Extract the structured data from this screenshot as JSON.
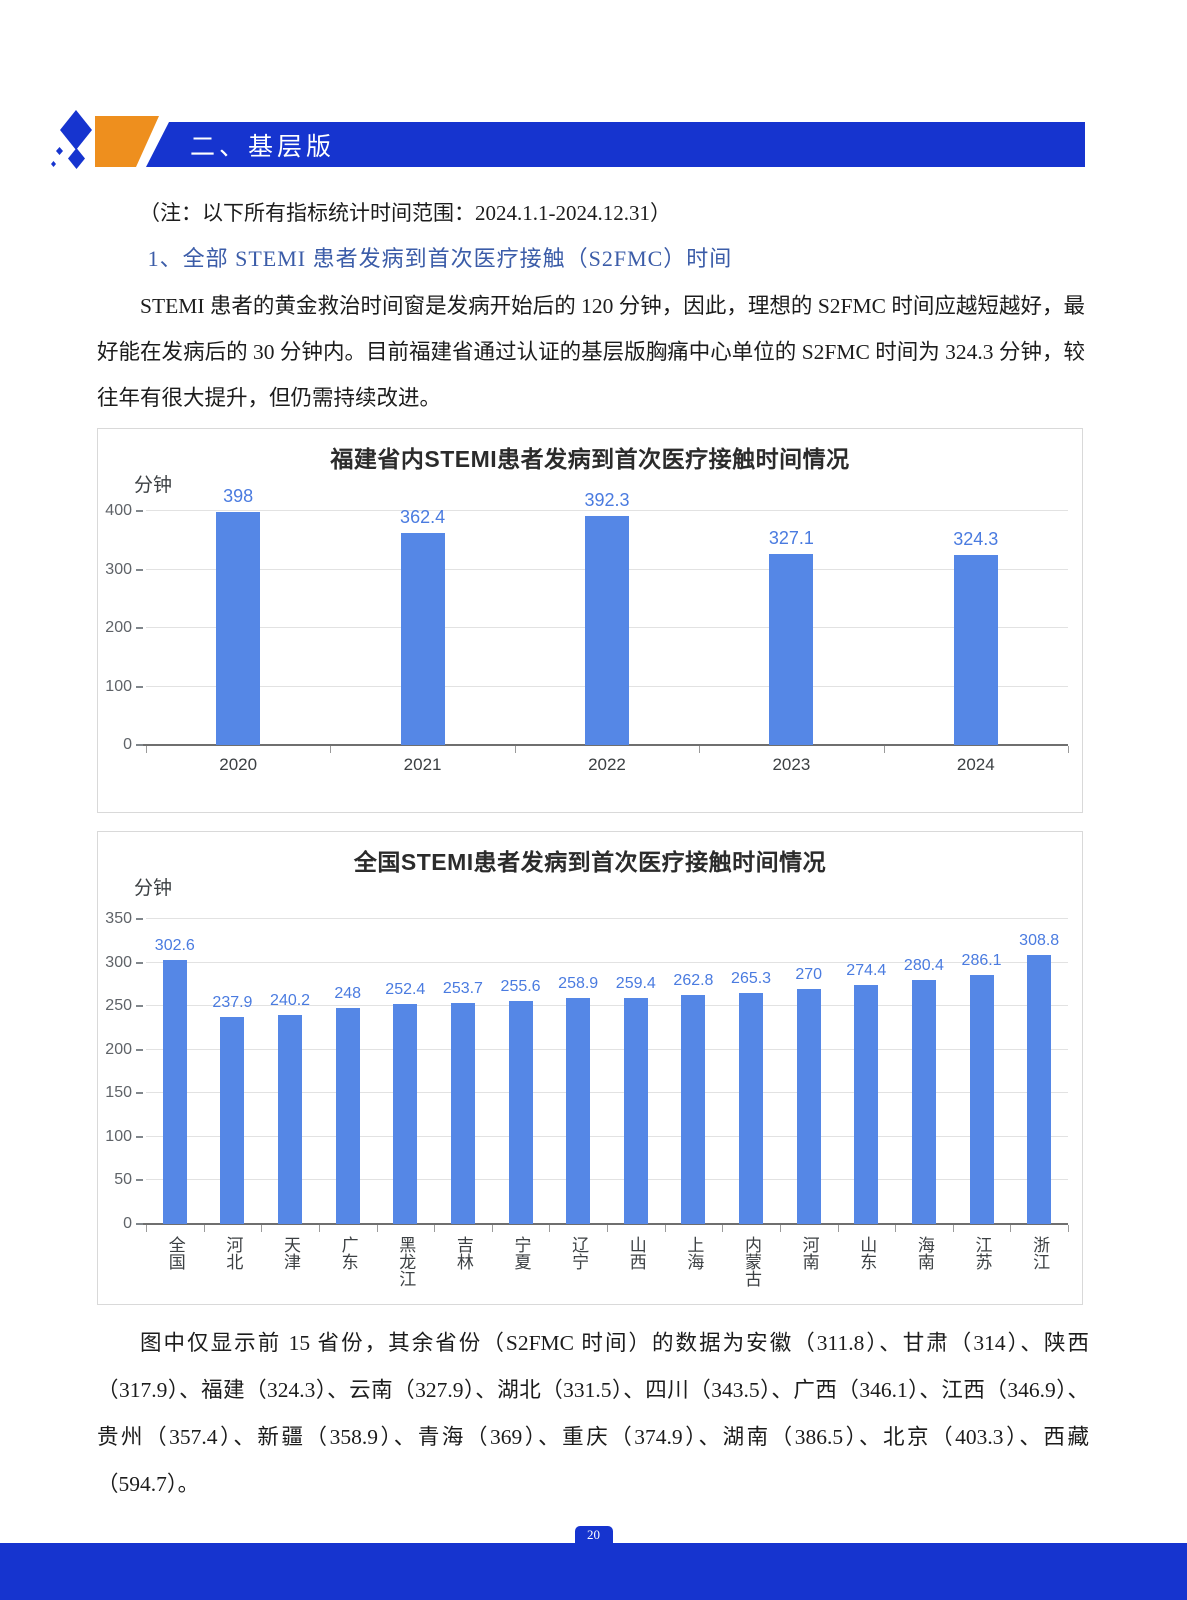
{
  "header": {
    "banner_title": "二、基层版"
  },
  "note": "（注：以下所有指标统计时间范围：2024.1.1-2024.12.31）",
  "heading": "1、全部 STEMI 患者发病到首次医疗接触（S2FMC）时间",
  "body_paragraph": "STEMI 患者的黄金救治时间窗是发病开始后的 120 分钟，因此，理想的 S2FMC 时间应越短越好，最好能在发病后的 30 分钟内。目前福建省通过认证的基层版胸痛中心单位的 S2FMC 时间为 324.3 分钟，较往年有很大提升，但仍需持续改进。",
  "chart_data": [
    {
      "type": "bar",
      "title": "福建省内STEMI患者发病到首次医疗接触时间情况",
      "ylabel": "分钟",
      "xlabel": "",
      "categories": [
        "2020",
        "2021",
        "2022",
        "2023",
        "2024"
      ],
      "values": [
        398,
        362.4,
        392.3,
        327.1,
        324.3
      ],
      "value_labels": [
        "398",
        "362.4",
        "392.3",
        "327.1",
        "324.3"
      ],
      "yticks": [
        0,
        100,
        200,
        300,
        400
      ],
      "ylim": [
        0,
        400
      ],
      "grid": true,
      "legend": "none",
      "bar_color": "#5587e6",
      "value_label_color": "#4a7be0",
      "vertical_xlabels": false
    },
    {
      "type": "bar",
      "title": "全国STEMI患者发病到首次医疗接触时间情况",
      "ylabel": "分钟",
      "xlabel": "",
      "categories": [
        "全国",
        "河北",
        "天津",
        "广东",
        "黑龙江",
        "吉林",
        "宁夏",
        "辽宁",
        "山西",
        "上海",
        "内蒙古",
        "河南",
        "山东",
        "海南",
        "江苏",
        "浙江"
      ],
      "values": [
        302.6,
        237.9,
        240.2,
        248,
        252.4,
        253.7,
        255.6,
        258.9,
        259.4,
        262.8,
        265.3,
        270,
        274.4,
        280.4,
        286.1,
        308.8
      ],
      "value_labels": [
        "302.6",
        "237.9",
        "240.2",
        "248",
        "252.4",
        "253.7",
        "255.6",
        "258.9",
        "259.4",
        "262.8",
        "265.3",
        "270",
        "274.4",
        "280.4",
        "286.1",
        "308.8"
      ],
      "yticks": [
        0,
        50,
        100,
        150,
        200,
        250,
        300,
        350
      ],
      "ylim": [
        0,
        350
      ],
      "grid": true,
      "legend": "none",
      "bar_color": "#5587e6",
      "value_label_color": "#4a7be0",
      "vertical_xlabels": true
    }
  ],
  "footnote": "图中仅显示前 15 省份，其余省份（S2FMC 时间）的数据为安徽（311.8）、甘肃（314）、陕西（317.9）、福建（324.3）、云南（327.9）、湖北（331.5）、四川（343.5）、广西（346.1）、江西（346.9）、贵州（357.4）、新疆（358.9）、青海（369）、重庆（374.9）、湖南（386.5）、北京（403.3）、西藏（594.7）。",
  "footer": {
    "page_number": "20"
  },
  "colors": {
    "banner_blue": "#1634cf",
    "accent_orange": "#ee8f1e",
    "bar_blue": "#5587e6",
    "value_label_blue": "#4a7be0",
    "heading_blue": "#3b5ca8",
    "gridline_gray": "#e2e2e2"
  }
}
